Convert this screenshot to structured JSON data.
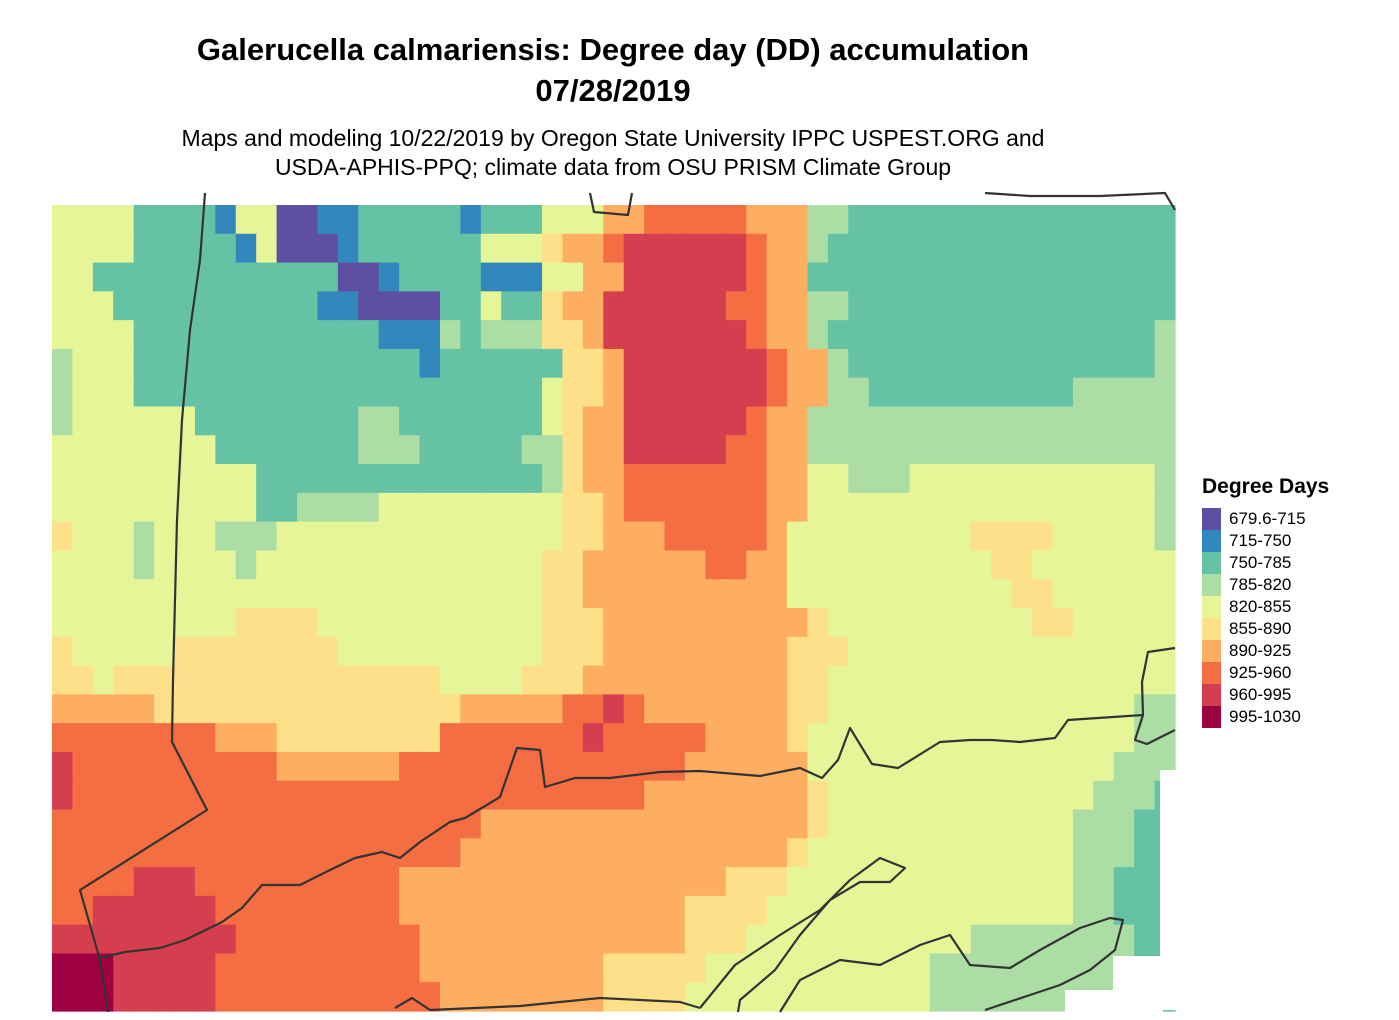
{
  "title_line1": "Galerucella calmariensis: Degree day (DD) accumulation",
  "title_line2": "07/28/2019",
  "subtitle_line1": "Maps and modeling 10/22/2019 by Oregon State University IPPC USPEST.ORG and",
  "subtitle_line2": "USDA-APHIS-PPQ; climate data from OSU PRISM Climate Group",
  "legend": {
    "title": "Degree Days",
    "classes": [
      {
        "label": "679.6-715",
        "color": "#5e4fa2"
      },
      {
        "label": "715-750",
        "color": "#3288bd"
      },
      {
        "label": "750-785",
        "color": "#66c2a5"
      },
      {
        "label": "785-820",
        "color": "#abdda4"
      },
      {
        "label": "820-855",
        "color": "#e6f598"
      },
      {
        "label": "855-890",
        "color": "#fee08b"
      },
      {
        "label": "890-925",
        "color": "#fdae61"
      },
      {
        "label": "925-960",
        "color": "#f46d43"
      },
      {
        "label": "960-995",
        "color": "#d53e4f"
      },
      {
        "label": "995-1030",
        "color": "#9e0142"
      }
    ]
  },
  "map": {
    "note_layer": "gridded degree-day raster with state boundary lines",
    "grid": [
      "4444222214400112222212224446677777666332222222222222222",
      "4444222221400012222224445667888888766322222222222222222",
      "4422222222222200122221114466888888766222222222222222222",
      "4442222222222110000224225668888887766332222222222222222",
      "4444222222222222111323335568888888766322222222222222223",
      "3444222222222222221222222556888888876632222222222222223",
      "3444222222222222222222224556888888876633222222222233333",
      "3444444222222223322222224566888888766333333333333333333",
      "4444444422222223332222233566888887766333333333333333333",
      "4444444444222222222222223566777777766443334444444444443",
      "4444444444223333444444444556777777766444444444444444443",
      "5444344433344444444444444556667777764444444445555444443",
      "4444344443444444444444445566666677664444444444554444444",
      "4444444444444444444444445566666666664444444444455444444",
      "4444444445555444444444445556666666666544444444445544444",
      "5444445555555544444444445556666666665554444444444444444",
      "5545555555555555555444455566666666665544444444444444444",
      "6666655555555555555566666778766666665544444444444444433",
      "7777777766655555555777777787777766665444444444444444433",
      "8777777777766666677777777777777666666444444444444444333",
      "8777777777777777777777777777766666666544444444444443332",
      "7777777777777777777776666666666666666544444444444433322",
      "7777777777777777777766666666666666665444444444444433322",
      "7777888777777777766666666666666665554444444444444433222",
      "7788888877777777766666666666666555544444444444444433222",
      "8888888887777777776666666666666555444444444443333333322",
      "9998888877777777776666666665555544444444444333333333322",
      "9998888877777777777666666665555444444444444333333333322"
    ]
  }
}
